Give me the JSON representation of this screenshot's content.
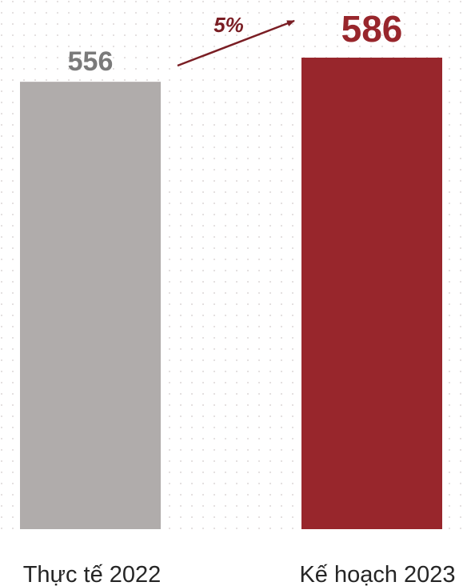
{
  "chart_data": {
    "type": "bar",
    "categories": [
      "Thực tế 2022",
      "Kế hoạch 2023"
    ],
    "values": [
      556,
      586
    ],
    "value_labels": [
      "556",
      "586"
    ],
    "bar_colors": [
      "#b0acab",
      "#98262c"
    ],
    "value_label_colors": [
      "#7a7a7a",
      "#98262c"
    ],
    "growth_label": "5%",
    "growth_color": "#7a1e24",
    "ylim": [
      0,
      586
    ],
    "grid": false,
    "legend": "none",
    "title": "",
    "xlabel": "",
    "ylabel": ""
  }
}
